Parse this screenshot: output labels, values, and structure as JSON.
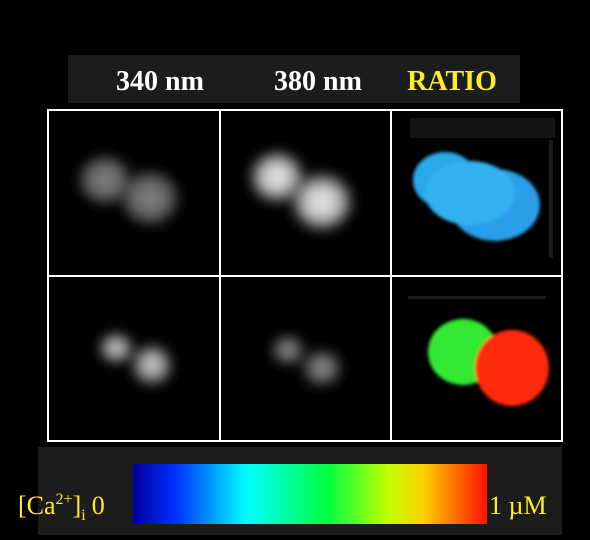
{
  "headers": [
    "340 nm",
    "380 nm",
    "RATIO"
  ],
  "colorbar": {
    "label": "[Ca",
    "superscript": "2+",
    "close": "]",
    "subscript": "i",
    "min": 0,
    "max": "1 µM"
  }
}
